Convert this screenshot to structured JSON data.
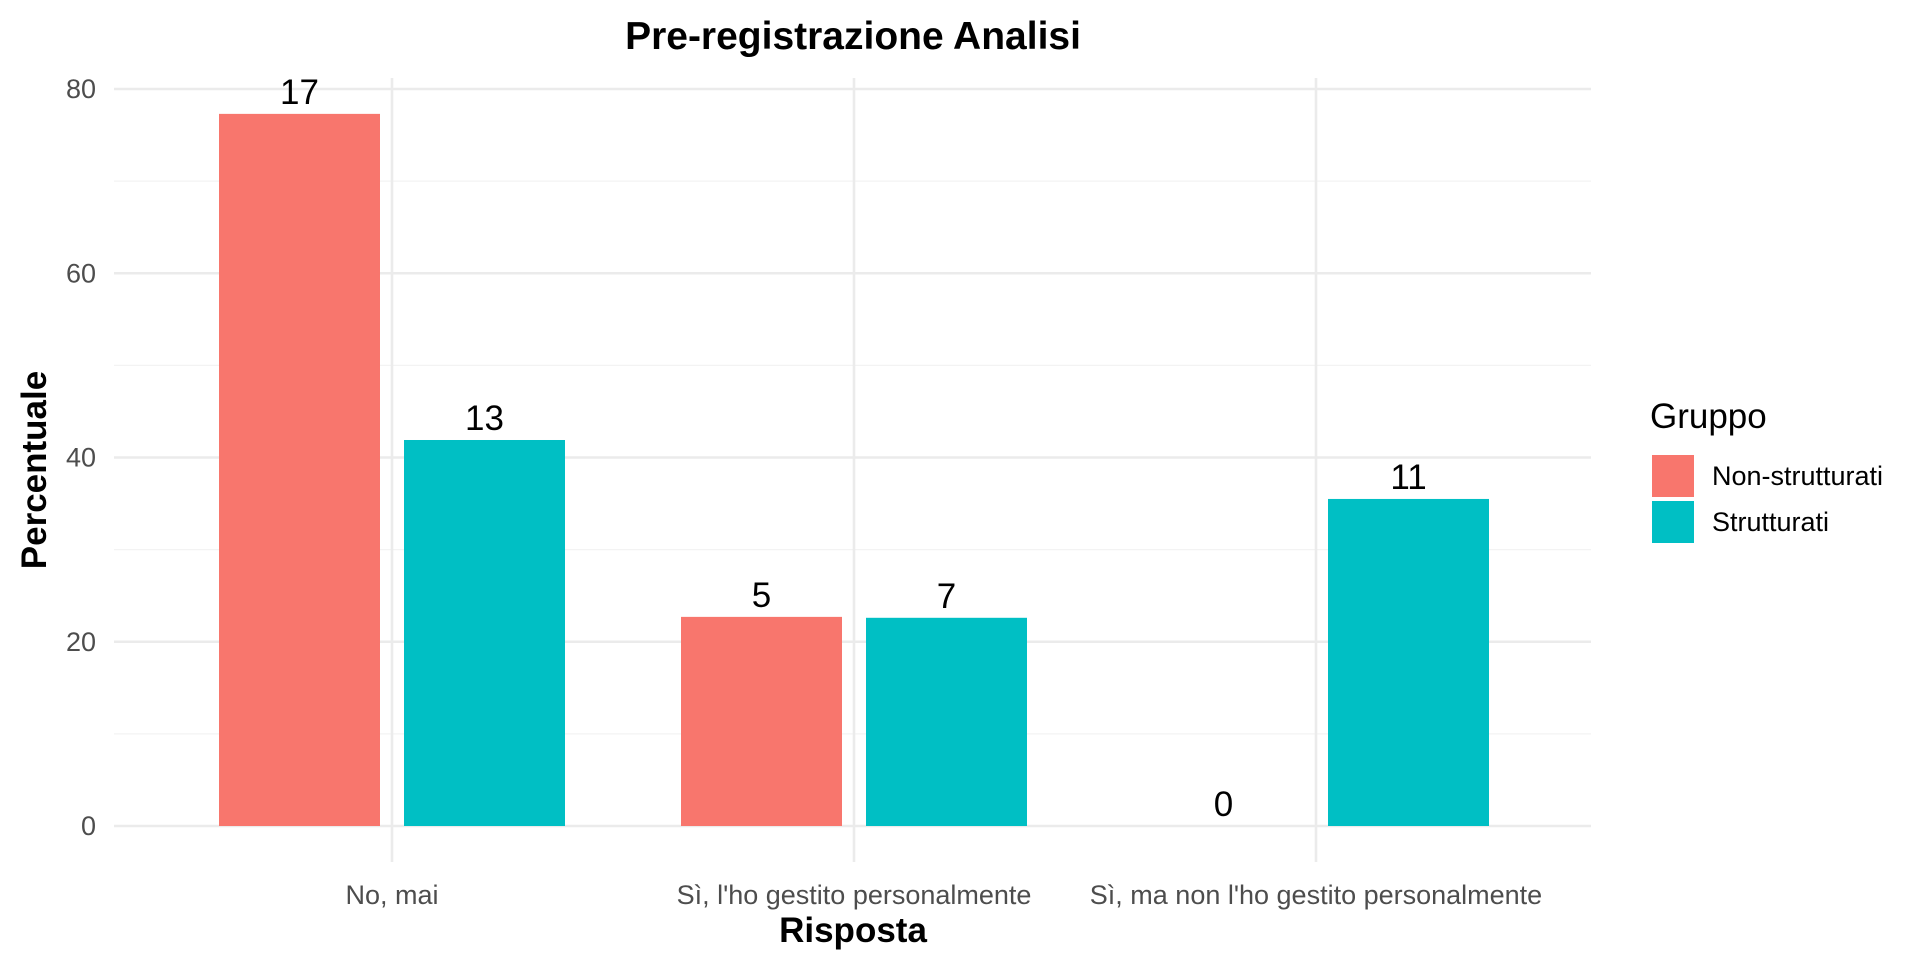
{
  "chart_data": {
    "type": "bar",
    "title": "Pre-registrazione Analisi",
    "xlabel": "Risposta",
    "ylabel": "Percentuale",
    "categories": [
      "No, mai",
      "Sì, l'ho gestito personalmente",
      "Sì, ma non l'ho gestito personalmente"
    ],
    "series": [
      {
        "name": "Non-strutturati",
        "color": "#F8766D",
        "values": [
          77.3,
          22.7,
          0
        ],
        "labels": [
          "17",
          "5",
          "0"
        ]
      },
      {
        "name": "Strutturati",
        "color": "#00BFC4",
        "values": [
          41.9,
          22.6,
          35.5
        ],
        "labels": [
          "13",
          "7",
          "11"
        ]
      }
    ],
    "ylim": [
      0,
      80
    ],
    "yticks": [
      0,
      20,
      40,
      60,
      80
    ],
    "yticks_minor": [
      10,
      30,
      50,
      70
    ],
    "grid": true,
    "legend": {
      "title": "Gruppo",
      "position": "right"
    }
  }
}
